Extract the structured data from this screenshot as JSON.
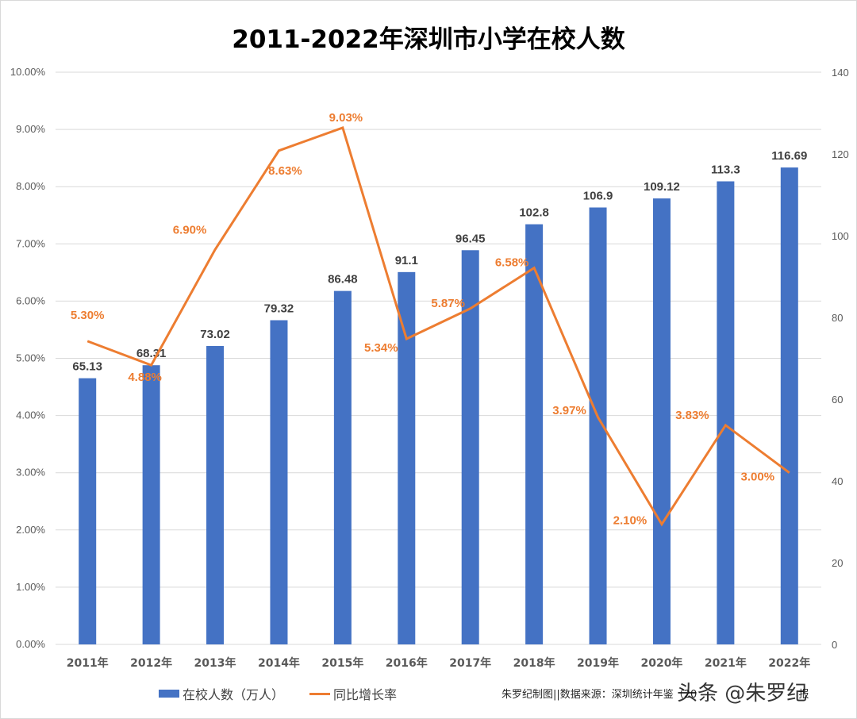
{
  "title": "2011-2022年深圳市小学在校人数",
  "legend": {
    "bar_label": "在校人数（万人）",
    "line_label": "同比增长率"
  },
  "source": "朱罗纪制图||数据来源：深圳统计年鉴（20",
  "source_tail": "报",
  "watermark": "头条 @朱罗纪",
  "colors": {
    "bar": "#4472c4",
    "line": "#ed7d31",
    "grid": "#d9d9d9",
    "axis_text": "#595959",
    "bar_label": "#404040"
  },
  "chart_data": {
    "type": "bar+line",
    "title": "2011-2022年深圳市小学在校人数",
    "categories": [
      "2011年",
      "2012年",
      "2013年",
      "2014年",
      "2015年",
      "2016年",
      "2017年",
      "2018年",
      "2019年",
      "2020年",
      "2021年",
      "2022年"
    ],
    "series": [
      {
        "name": "在校人数（万人）",
        "type": "bar",
        "axis": "right",
        "values": [
          65.13,
          68.31,
          73.02,
          79.32,
          86.48,
          91.1,
          96.45,
          102.8,
          106.9,
          109.12,
          113.3,
          116.69
        ],
        "labels": [
          "65.13",
          "68.31",
          "73.02",
          "79.32",
          "86.48",
          "91.1",
          "96.45",
          "102.8",
          "106.9",
          "109.12",
          "113.3",
          "116.69"
        ]
      },
      {
        "name": "同比增长率",
        "type": "line",
        "axis": "left",
        "values": [
          5.3,
          4.88,
          6.9,
          8.63,
          9.03,
          5.34,
          5.87,
          6.58,
          3.97,
          2.1,
          3.83,
          3.0
        ],
        "labels": [
          "5.30%",
          "4.88%",
          "6.90%",
          "8.63%",
          "9.03%",
          "5.34%",
          "5.87%",
          "6.58%",
          "3.97%",
          "2.10%",
          "3.83%",
          "3.00%"
        ]
      }
    ],
    "left_axis": {
      "ticks": [
        "0.00%",
        "1.00%",
        "2.00%",
        "3.00%",
        "4.00%",
        "5.00%",
        "6.00%",
        "7.00%",
        "8.00%",
        "9.00%",
        "10.00%"
      ],
      "range": [
        0,
        10
      ]
    },
    "right_axis": {
      "ticks": [
        "0",
        "20",
        "40",
        "60",
        "80",
        "100",
        "120",
        "140"
      ],
      "range": [
        0,
        140
      ]
    },
    "grid": true,
    "legend_position": "bottom"
  }
}
